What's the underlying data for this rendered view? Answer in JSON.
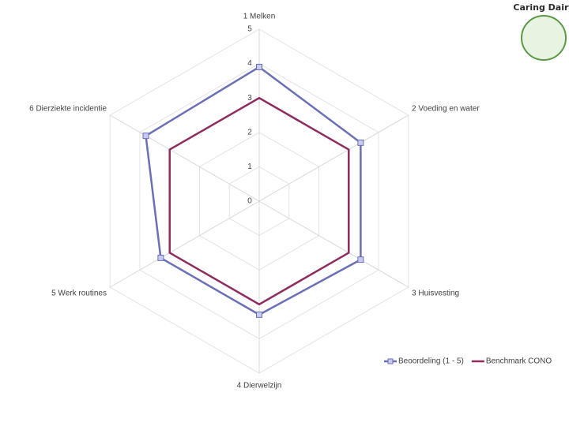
{
  "logo": "Caring Dairy",
  "chart_data": {
    "type": "radar",
    "categories": [
      "1 Melken",
      "2 Voeding en water",
      "3 Huisvesting",
      "4 Dierwelzijn",
      "5 Werk routines",
      "6 Dierziekte incidentie"
    ],
    "series": [
      {
        "name": "Beoordeling (1 - 5)",
        "color": "#6b6fb5",
        "marker": "square",
        "values": [
          3.9,
          3.4,
          3.4,
          3.3,
          3.3,
          3.8
        ]
      },
      {
        "name": "Benchmark CONO",
        "color": "#8e2c5e",
        "values": [
          3,
          3,
          3,
          3,
          3,
          3
        ]
      }
    ],
    "ylim": [
      0,
      5
    ],
    "yticks": [
      0,
      1,
      2,
      3,
      4,
      5
    ],
    "grid": true,
    "legend": "bottom-right"
  }
}
